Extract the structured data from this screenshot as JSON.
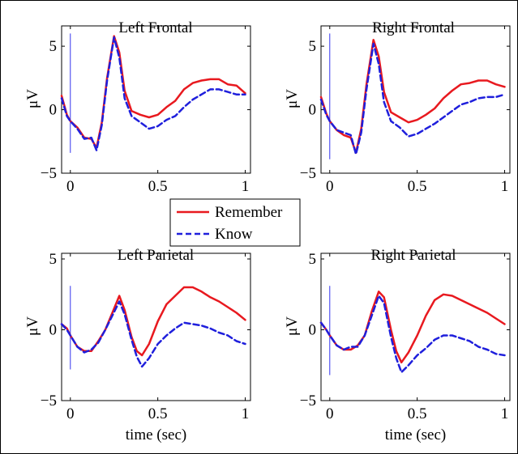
{
  "chart_data": [
    {
      "type": "line",
      "title": "Left Frontal",
      "xlabel": "",
      "ylabel": "μV",
      "xlim": [
        -0.05,
        1.03
      ],
      "ylim": [
        -5,
        6.6
      ],
      "xticks": [
        "0",
        "0.5",
        "1"
      ],
      "yticks": [
        "-5",
        "0",
        "5"
      ],
      "stimulus_marker": {
        "x": 0,
        "y_range": [
          -3.4,
          6.0
        ]
      },
      "series": [
        {
          "name": "Remember",
          "color": "#e8191f",
          "dash": "solid",
          "x": [
            -0.05,
            -0.02,
            0.0,
            0.04,
            0.08,
            0.12,
            0.15,
            0.18,
            0.21,
            0.25,
            0.28,
            0.31,
            0.35,
            0.4,
            0.45,
            0.5,
            0.55,
            0.6,
            0.65,
            0.7,
            0.75,
            0.8,
            0.85,
            0.9,
            0.95,
            1.0
          ],
          "y": [
            1.1,
            -0.4,
            -0.9,
            -1.4,
            -2.2,
            -2.3,
            -3.0,
            -1.0,
            2.5,
            5.8,
            4.5,
            1.5,
            -0.1,
            -0.4,
            -0.6,
            -0.4,
            0.2,
            0.7,
            1.6,
            2.1,
            2.3,
            2.4,
            2.4,
            2.0,
            1.9,
            1.3
          ]
        },
        {
          "name": "Know",
          "color": "#1f1fdc",
          "dash": "dashed",
          "x": [
            -0.05,
            -0.02,
            0.0,
            0.04,
            0.08,
            0.12,
            0.15,
            0.18,
            0.21,
            0.25,
            0.28,
            0.31,
            0.35,
            0.4,
            0.45,
            0.5,
            0.55,
            0.6,
            0.65,
            0.7,
            0.75,
            0.8,
            0.85,
            0.9,
            0.95,
            1.0
          ],
          "y": [
            0.9,
            -0.5,
            -0.9,
            -1.5,
            -2.3,
            -2.2,
            -3.2,
            -1.2,
            2.3,
            5.7,
            4.1,
            0.9,
            -0.5,
            -1.0,
            -1.5,
            -1.3,
            -0.8,
            -0.5,
            0.2,
            0.8,
            1.2,
            1.6,
            1.6,
            1.4,
            1.2,
            1.2
          ]
        }
      ]
    },
    {
      "type": "line",
      "title": "Right Frontal",
      "xlabel": "",
      "ylabel": "μV",
      "xlim": [
        -0.05,
        1.03
      ],
      "ylim": [
        -5,
        6.6
      ],
      "xticks": [
        "0",
        "0.5",
        "1"
      ],
      "yticks": [
        "-5",
        "0",
        "5"
      ],
      "stimulus_marker": {
        "x": 0,
        "y_range": [
          -3.9,
          6.0
        ]
      },
      "series": [
        {
          "name": "Remember",
          "color": "#e8191f",
          "dash": "solid",
          "x": [
            -0.05,
            -0.02,
            0.0,
            0.04,
            0.08,
            0.12,
            0.15,
            0.18,
            0.21,
            0.25,
            0.28,
            0.31,
            0.35,
            0.4,
            0.45,
            0.5,
            0.55,
            0.6,
            0.65,
            0.7,
            0.75,
            0.8,
            0.85,
            0.9,
            0.95,
            1.0
          ],
          "y": [
            1.0,
            -0.3,
            -0.9,
            -1.6,
            -2.0,
            -2.2,
            -3.4,
            -1.5,
            2.0,
            5.5,
            4.2,
            1.4,
            -0.2,
            -0.6,
            -1.0,
            -0.8,
            -0.4,
            0.1,
            0.9,
            1.5,
            2.0,
            2.1,
            2.3,
            2.3,
            2.0,
            1.8
          ]
        },
        {
          "name": "Know",
          "color": "#1f1fdc",
          "dash": "dashed",
          "x": [
            -0.05,
            -0.02,
            0.0,
            0.04,
            0.08,
            0.12,
            0.15,
            0.18,
            0.21,
            0.25,
            0.28,
            0.31,
            0.35,
            0.4,
            0.45,
            0.5,
            0.55,
            0.6,
            0.65,
            0.7,
            0.75,
            0.8,
            0.85,
            0.9,
            0.95,
            1.0
          ],
          "y": [
            0.8,
            -0.4,
            -0.9,
            -1.6,
            -1.8,
            -2.0,
            -3.5,
            -1.8,
            1.6,
            5.2,
            3.6,
            0.6,
            -0.9,
            -1.4,
            -2.1,
            -1.9,
            -1.5,
            -1.1,
            -0.6,
            -0.1,
            0.4,
            0.6,
            0.9,
            1.0,
            1.0,
            1.2
          ]
        }
      ]
    },
    {
      "type": "line",
      "title": "Left Parietal",
      "xlabel": "time (sec)",
      "ylabel": "μV",
      "xlim": [
        -0.05,
        1.03
      ],
      "ylim": [
        -5,
        5.4
      ],
      "xticks": [
        "0",
        "0.5",
        "1"
      ],
      "yticks": [
        "-5",
        "0",
        "5"
      ],
      "stimulus_marker": {
        "x": 0,
        "y_range": [
          -2.8,
          3.1
        ]
      },
      "series": [
        {
          "name": "Remember",
          "color": "#e8191f",
          "dash": "solid",
          "x": [
            -0.05,
            -0.02,
            0.0,
            0.04,
            0.08,
            0.12,
            0.16,
            0.2,
            0.24,
            0.28,
            0.31,
            0.35,
            0.38,
            0.41,
            0.45,
            0.5,
            0.55,
            0.6,
            0.65,
            0.7,
            0.75,
            0.8,
            0.85,
            0.9,
            0.95,
            1.0
          ],
          "y": [
            0.4,
            0.1,
            -0.4,
            -1.2,
            -1.5,
            -1.5,
            -0.8,
            0.0,
            1.2,
            2.4,
            1.4,
            -0.5,
            -1.5,
            -1.8,
            -1.0,
            0.6,
            1.8,
            2.4,
            3.0,
            3.0,
            2.7,
            2.3,
            2.0,
            1.6,
            1.2,
            0.7
          ]
        },
        {
          "name": "Know",
          "color": "#1f1fdc",
          "dash": "dashed",
          "x": [
            -0.05,
            -0.02,
            0.0,
            0.04,
            0.08,
            0.12,
            0.16,
            0.2,
            0.24,
            0.28,
            0.31,
            0.35,
            0.38,
            0.41,
            0.45,
            0.5,
            0.55,
            0.6,
            0.65,
            0.7,
            0.75,
            0.8,
            0.85,
            0.9,
            0.95,
            1.0
          ],
          "y": [
            0.4,
            0.0,
            -0.4,
            -1.2,
            -1.6,
            -1.4,
            -0.9,
            0.0,
            1.0,
            2.0,
            1.1,
            -0.7,
            -1.9,
            -2.6,
            -2.0,
            -1.0,
            -0.4,
            0.1,
            0.5,
            0.4,
            0.3,
            0.1,
            -0.2,
            -0.4,
            -0.8,
            -1.0
          ]
        }
      ]
    },
    {
      "type": "line",
      "title": "Right Parietal",
      "xlabel": "time (sec)",
      "ylabel": "μV",
      "xlim": [
        -0.05,
        1.03
      ],
      "ylim": [
        -5,
        5.4
      ],
      "xticks": [
        "0",
        "0.5",
        "1"
      ],
      "yticks": [
        "-5",
        "0",
        "5"
      ],
      "stimulus_marker": {
        "x": 0,
        "y_range": [
          -3.2,
          3.1
        ]
      },
      "series": [
        {
          "name": "Remember",
          "color": "#e8191f",
          "dash": "solid",
          "x": [
            -0.05,
            -0.02,
            0.0,
            0.04,
            0.08,
            0.12,
            0.16,
            0.2,
            0.24,
            0.28,
            0.31,
            0.35,
            0.38,
            0.41,
            0.45,
            0.5,
            0.55,
            0.6,
            0.65,
            0.7,
            0.75,
            0.8,
            0.85,
            0.9,
            0.95,
            1.0
          ],
          "y": [
            0.5,
            0.0,
            -0.4,
            -1.1,
            -1.4,
            -1.4,
            -1.1,
            -0.4,
            1.3,
            2.7,
            2.3,
            0.0,
            -1.5,
            -2.3,
            -1.6,
            -0.4,
            1.0,
            2.1,
            2.5,
            2.4,
            2.1,
            1.8,
            1.5,
            1.2,
            0.8,
            0.4
          ]
        },
        {
          "name": "Know",
          "color": "#1f1fdc",
          "dash": "dashed",
          "x": [
            -0.05,
            -0.02,
            0.0,
            0.04,
            0.08,
            0.12,
            0.16,
            0.2,
            0.24,
            0.28,
            0.31,
            0.35,
            0.38,
            0.41,
            0.45,
            0.5,
            0.55,
            0.6,
            0.65,
            0.7,
            0.75,
            0.8,
            0.85,
            0.9,
            0.95,
            1.0
          ],
          "y": [
            0.5,
            0.0,
            -0.4,
            -1.1,
            -1.4,
            -1.2,
            -1.2,
            -0.4,
            1.0,
            2.4,
            1.9,
            -0.5,
            -2.0,
            -3.0,
            -2.5,
            -1.8,
            -1.3,
            -0.7,
            -0.4,
            -0.4,
            -0.6,
            -0.8,
            -1.2,
            -1.4,
            -1.7,
            -1.8
          ]
        }
      ]
    }
  ],
  "legend": {
    "items": [
      {
        "label": "Remember",
        "color": "#e8191f",
        "dash": "solid"
      },
      {
        "label": "Know",
        "color": "#1f1fdc",
        "dash": "dashed"
      }
    ]
  },
  "colors": {
    "axis": "#000000",
    "stimulus_marker": "#3333ee"
  }
}
